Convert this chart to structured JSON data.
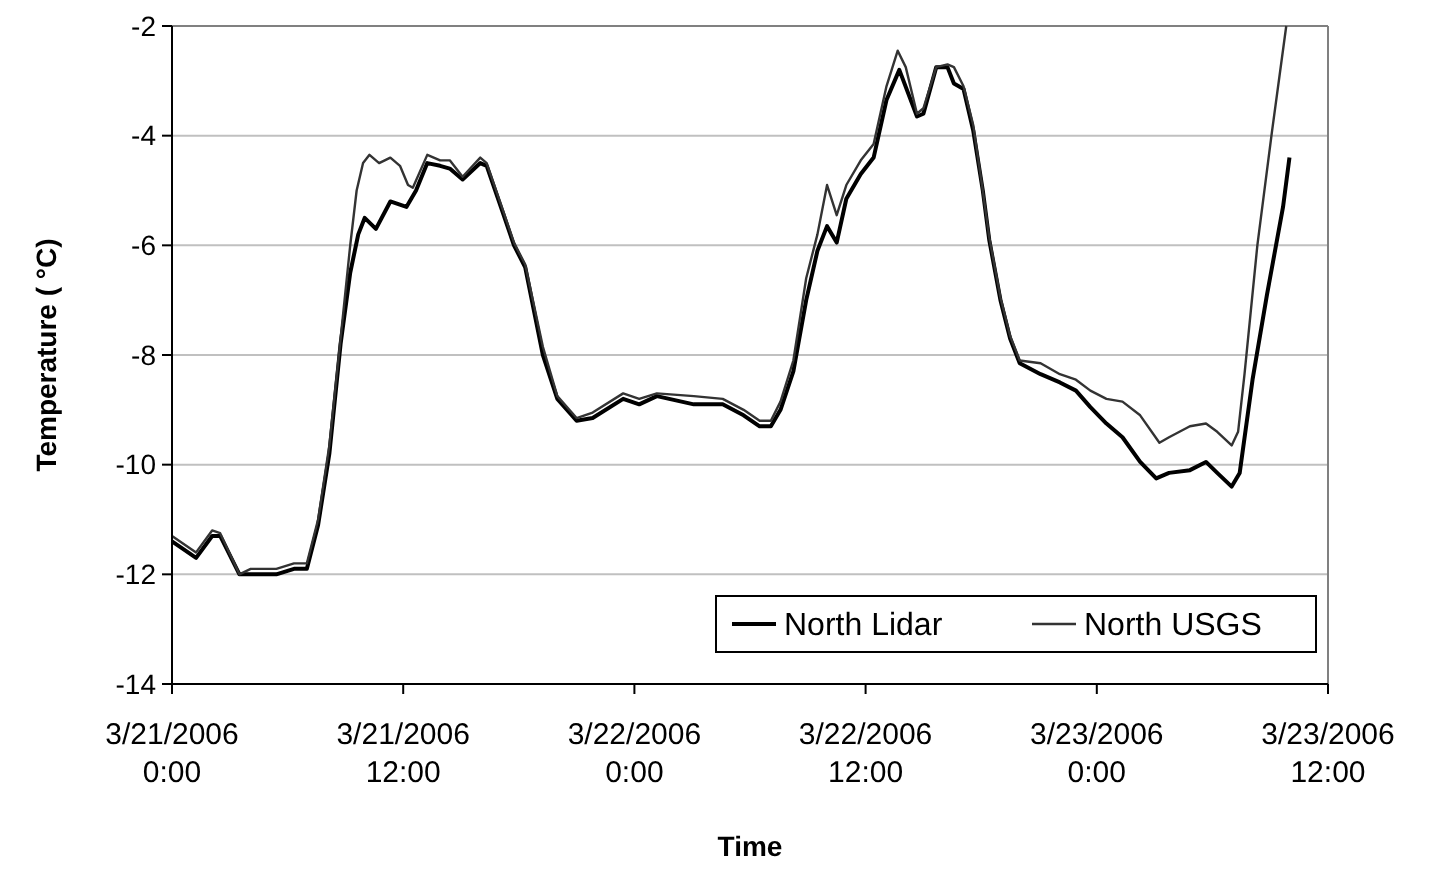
{
  "chart_data": {
    "type": "line",
    "xlabel": "Time",
    "ylabel": "Temperature ( °C)",
    "xlim": [
      "2006-03-21T00:00",
      "2006-03-23T12:00"
    ],
    "xticks": [
      {
        "value": "2006-03-21T00:00",
        "label": "3/21/2006 0:00"
      },
      {
        "value": "2006-03-21T12:00",
        "label": "3/21/2006 12:00"
      },
      {
        "value": "2006-03-22T00:00",
        "label": "3/22/2006 0:00"
      },
      {
        "value": "2006-03-22T12:00",
        "label": "3/22/2006 12:00"
      },
      {
        "value": "2006-03-23T00:00",
        "label": "3/23/2006 0:00"
      },
      {
        "value": "2006-03-23T12:00",
        "label": "3/23/2006 12:00"
      }
    ],
    "ylim": [
      -14,
      -2
    ],
    "yticks": [
      -14,
      -12,
      -10,
      -8,
      -6,
      -4,
      -2
    ],
    "grid": "y",
    "legend": "bottom right",
    "marker": "none",
    "line_style": "solid",
    "series": [
      {
        "name": "North Lidar",
        "color": "#000000",
        "x": [
          "2006-03-21T00:00",
          "2006-03-21T01:15",
          "2006-03-21T02:05",
          "2006-03-21T02:30",
          "2006-03-21T03:30",
          "2006-03-21T04:05",
          "2006-03-21T05:25",
          "2006-03-21T06:20",
          "2006-03-21T07:00",
          "2006-03-21T07:35",
          "2006-03-21T08:10",
          "2006-03-21T08:45",
          "2006-03-21T09:15",
          "2006-03-21T09:40",
          "2006-03-21T10:00",
          "2006-03-21T10:35",
          "2006-03-21T11:20",
          "2006-03-21T12:10",
          "2006-03-21T12:40",
          "2006-03-21T13:15",
          "2006-03-21T13:55",
          "2006-03-21T14:25",
          "2006-03-21T15:05",
          "2006-03-21T16:00",
          "2006-03-21T16:20",
          "2006-03-21T17:10",
          "2006-03-21T17:45",
          "2006-03-21T18:20",
          "2006-03-21T19:15",
          "2006-03-21T20:00",
          "2006-03-21T21:00",
          "2006-03-21T21:50",
          "2006-03-21T23:25",
          "2006-03-22T00:15",
          "2006-03-22T01:10",
          "2006-03-22T03:05",
          "2006-03-22T04:35",
          "2006-03-22T05:40",
          "2006-03-22T06:30",
          "2006-03-22T07:05",
          "2006-03-22T07:35",
          "2006-03-22T08:15",
          "2006-03-22T08:55",
          "2006-03-22T09:30",
          "2006-03-22T10:00",
          "2006-03-22T10:30",
          "2006-03-22T11:00",
          "2006-03-22T11:45",
          "2006-03-22T12:25",
          "2006-03-22T13:05",
          "2006-03-22T13:45",
          "2006-03-22T14:40",
          "2006-03-22T15:00",
          "2006-03-22T15:40",
          "2006-03-22T16:15",
          "2006-03-22T16:35",
          "2006-03-22T17:05",
          "2006-03-22T17:35",
          "2006-03-22T18:05",
          "2006-03-22T18:25",
          "2006-03-22T19:00",
          "2006-03-22T19:30",
          "2006-03-22T20:00",
          "2006-03-22T21:05",
          "2006-03-22T22:05",
          "2006-03-22T22:55",
          "2006-03-22T23:40",
          "2006-03-23T00:30",
          "2006-03-23T01:20",
          "2006-03-23T02:15",
          "2006-03-23T03:05",
          "2006-03-23T03:45",
          "2006-03-23T04:50",
          "2006-03-23T05:40",
          "2006-03-23T06:15",
          "2006-03-23T07:00",
          "2006-03-23T07:25",
          "2006-03-23T08:05",
          "2006-03-23T08:50",
          "2006-03-23T09:40",
          "2006-03-23T10:00"
        ],
        "values": [
          -11.4,
          -11.7,
          -11.3,
          -11.3,
          -12.0,
          -12.0,
          -12.0,
          -11.9,
          -11.9,
          -11.1,
          -9.8,
          -7.8,
          -6.5,
          -5.8,
          -5.5,
          -5.7,
          -5.2,
          -5.3,
          -5.0,
          -4.5,
          -4.55,
          -4.6,
          -4.8,
          -4.5,
          -4.55,
          -5.4,
          -6.0,
          -6.4,
          -8.0,
          -8.8,
          -9.2,
          -9.15,
          -8.8,
          -8.9,
          -8.75,
          -8.9,
          -8.9,
          -9.1,
          -9.3,
          -9.3,
          -9.0,
          -8.3,
          -7.0,
          -6.1,
          -5.65,
          -5.95,
          -5.15,
          -4.7,
          -4.4,
          -3.35,
          -2.8,
          -3.65,
          -3.6,
          -2.75,
          -2.75,
          -3.05,
          -3.15,
          -3.9,
          -5.0,
          -5.9,
          -7.0,
          -7.7,
          -8.15,
          -8.35,
          -8.5,
          -8.65,
          -8.95,
          -9.25,
          -9.5,
          -9.95,
          -10.25,
          -10.15,
          -10.1,
          -9.95,
          -10.15,
          -10.4,
          -10.15,
          -8.45,
          -6.9,
          -5.3,
          -4.4
        ]
      },
      {
        "name": "North USGS",
        "color": "#333333",
        "x": [
          "2006-03-21T00:00",
          "2006-03-21T01:15",
          "2006-03-21T02:05",
          "2006-03-21T02:30",
          "2006-03-21T03:30",
          "2006-03-21T04:05",
          "2006-03-21T05:25",
          "2006-03-21T06:20",
          "2006-03-21T07:00",
          "2006-03-21T07:35",
          "2006-03-21T08:10",
          "2006-03-21T08:45",
          "2006-03-21T09:15",
          "2006-03-21T09:35",
          "2006-03-21T09:55",
          "2006-03-21T10:15",
          "2006-03-21T10:45",
          "2006-03-21T11:20",
          "2006-03-21T11:50",
          "2006-03-21T12:15",
          "2006-03-21T12:30",
          "2006-03-21T13:15",
          "2006-03-21T13:55",
          "2006-03-21T14:25",
          "2006-03-21T15:05",
          "2006-03-21T16:00",
          "2006-03-21T16:20",
          "2006-03-21T17:10",
          "2006-03-21T17:45",
          "2006-03-21T18:20",
          "2006-03-21T19:15",
          "2006-03-21T20:00",
          "2006-03-21T21:00",
          "2006-03-21T21:50",
          "2006-03-21T23:25",
          "2006-03-22T00:15",
          "2006-03-22T01:10",
          "2006-03-22T03:05",
          "2006-03-22T04:35",
          "2006-03-22T05:40",
          "2006-03-22T06:30",
          "2006-03-22T07:05",
          "2006-03-22T07:35",
          "2006-03-22T08:15",
          "2006-03-22T08:55",
          "2006-03-22T09:30",
          "2006-03-22T10:00",
          "2006-03-22T10:30",
          "2006-03-22T11:00",
          "2006-03-22T11:45",
          "2006-03-22T12:25",
          "2006-03-22T13:05",
          "2006-03-22T13:40",
          "2006-03-22T14:05",
          "2006-03-22T14:40",
          "2006-03-22T15:00",
          "2006-03-22T15:40",
          "2006-03-22T16:15",
          "2006-03-22T16:35",
          "2006-03-22T17:05",
          "2006-03-22T17:35",
          "2006-03-22T18:05",
          "2006-03-22T18:25",
          "2006-03-22T19:00",
          "2006-03-22T19:30",
          "2006-03-22T20:00",
          "2006-03-22T21:05",
          "2006-03-22T22:05",
          "2006-03-22T22:55",
          "2006-03-22T23:40",
          "2006-03-23T00:30",
          "2006-03-23T01:20",
          "2006-03-23T02:15",
          "2006-03-23T03:15",
          "2006-03-23T03:45",
          "2006-03-23T04:50",
          "2006-03-23T05:40",
          "2006-03-23T06:15",
          "2006-03-23T07:00",
          "2006-03-23T07:20",
          "2006-03-23T07:40",
          "2006-03-23T08:20",
          "2006-03-23T09:05",
          "2006-03-23T09:50"
        ],
        "values": [
          -11.3,
          -11.6,
          -11.2,
          -11.25,
          -12.0,
          -11.9,
          -11.9,
          -11.8,
          -11.8,
          -11.0,
          -9.65,
          -7.7,
          -6.0,
          -5.0,
          -4.5,
          -4.35,
          -4.5,
          -4.4,
          -4.55,
          -4.9,
          -4.95,
          -4.35,
          -4.45,
          -4.45,
          -4.75,
          -4.4,
          -4.5,
          -5.35,
          -5.95,
          -6.35,
          -7.85,
          -8.75,
          -9.15,
          -9.05,
          -8.7,
          -8.8,
          -8.7,
          -8.75,
          -8.8,
          -9.0,
          -9.2,
          -9.2,
          -8.85,
          -8.1,
          -6.6,
          -5.8,
          -4.9,
          -5.45,
          -4.9,
          -4.45,
          -4.15,
          -3.1,
          -2.45,
          -2.75,
          -3.6,
          -3.5,
          -2.75,
          -2.7,
          -2.75,
          -3.1,
          -3.8,
          -5.0,
          -5.85,
          -6.95,
          -7.65,
          -8.1,
          -8.15,
          -8.35,
          -8.45,
          -8.65,
          -8.8,
          -8.85,
          -9.1,
          -9.6,
          -9.5,
          -9.3,
          -9.25,
          -9.4,
          -9.65,
          -9.4,
          -8.35,
          -6.0,
          -3.95,
          -2.0
        ]
      }
    ]
  }
}
